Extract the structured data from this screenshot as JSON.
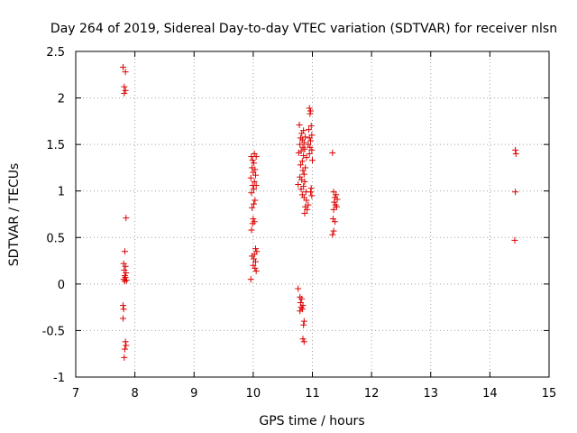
{
  "chart_data": {
    "type": "scatter",
    "title": "Day 264 of 2019, Sidereal Day-to-day VTEC variation (SDTVAR) for receiver nlsn",
    "xlabel": "GPS time / hours",
    "ylabel": "SDTVAR / TECUs",
    "xlim": [
      7,
      15
    ],
    "ylim": [
      -1,
      2.5
    ],
    "xticks": [
      7,
      8,
      9,
      10,
      11,
      12,
      13,
      14,
      15
    ],
    "xtick_labels": [
      "7",
      "8",
      "9",
      "10",
      "11",
      "12",
      "13",
      "14",
      "15"
    ],
    "yticks": [
      -1,
      -0.5,
      0,
      0.5,
      1,
      1.5,
      2,
      2.5
    ],
    "ytick_labels": [
      "-1",
      "-0.5",
      "0",
      "0.5",
      "1",
      "1.5",
      "2",
      "2.5"
    ],
    "grid": true,
    "marker": "+",
    "color": "#dd0000",
    "series": [
      {
        "name": "SDTVAR",
        "points": [
          [
            7.8,
            2.33
          ],
          [
            7.84,
            2.28
          ],
          [
            7.82,
            2.12
          ],
          [
            7.84,
            2.08
          ],
          [
            7.82,
            2.05
          ],
          [
            7.85,
            0.71
          ],
          [
            7.83,
            0.35
          ],
          [
            7.81,
            0.22
          ],
          [
            7.84,
            0.19
          ],
          [
            7.82,
            0.15
          ],
          [
            7.85,
            0.12
          ],
          [
            7.83,
            0.09
          ],
          [
            7.84,
            0.07
          ],
          [
            7.81,
            0.05
          ],
          [
            7.86,
            0.04
          ],
          [
            7.83,
            0.03
          ],
          [
            7.8,
            -0.23
          ],
          [
            7.81,
            -0.27
          ],
          [
            7.8,
            -0.37
          ],
          [
            7.84,
            -0.62
          ],
          [
            7.85,
            -0.66
          ],
          [
            7.83,
            -0.7
          ],
          [
            7.82,
            -0.79
          ],
          [
            9.97,
            1.37
          ],
          [
            10.02,
            1.4
          ],
          [
            10.05,
            1.37
          ],
          [
            9.99,
            1.33
          ],
          [
            10.01,
            1.3
          ],
          [
            9.98,
            1.25
          ],
          [
            10.03,
            1.23
          ],
          [
            10.0,
            1.2
          ],
          [
            10.04,
            1.17
          ],
          [
            9.96,
            1.14
          ],
          [
            10.02,
            1.1
          ],
          [
            9.99,
            1.06
          ],
          [
            10.05,
            1.06
          ],
          [
            10.01,
            1.02
          ],
          [
            9.97,
            0.98
          ],
          [
            10.03,
            0.9
          ],
          [
            10.01,
            0.86
          ],
          [
            9.98,
            0.82
          ],
          [
            10.0,
            0.7
          ],
          [
            10.02,
            0.67
          ],
          [
            9.99,
            0.65
          ],
          [
            9.97,
            0.58
          ],
          [
            10.04,
            0.38
          ],
          [
            10.06,
            0.35
          ],
          [
            10.02,
            0.32
          ],
          [
            9.98,
            0.3
          ],
          [
            10.01,
            0.27
          ],
          [
            10.04,
            0.24
          ],
          [
            10.0,
            0.2
          ],
          [
            10.03,
            0.17
          ],
          [
            10.05,
            0.14
          ],
          [
            9.96,
            0.05
          ],
          [
            10.78,
            1.71
          ],
          [
            10.82,
            1.62
          ],
          [
            10.85,
            1.65
          ],
          [
            10.88,
            1.58
          ],
          [
            10.8,
            1.57
          ],
          [
            10.83,
            1.55
          ],
          [
            10.86,
            1.52
          ],
          [
            10.79,
            1.5
          ],
          [
            10.84,
            1.47
          ],
          [
            10.87,
            1.45
          ],
          [
            10.81,
            1.43
          ],
          [
            10.77,
            1.41
          ],
          [
            10.85,
            1.38
          ],
          [
            10.9,
            1.36
          ],
          [
            10.83,
            1.32
          ],
          [
            10.8,
            1.28
          ],
          [
            10.88,
            1.25
          ],
          [
            10.84,
            1.22
          ],
          [
            10.86,
            1.18
          ],
          [
            10.79,
            1.15
          ],
          [
            10.82,
            1.12
          ],
          [
            10.87,
            1.1
          ],
          [
            10.76,
            1.07
          ],
          [
            10.85,
            1.05
          ],
          [
            10.81,
            1.02
          ],
          [
            10.89,
            0.99
          ],
          [
            10.83,
            0.96
          ],
          [
            10.86,
            0.93
          ],
          [
            10.9,
            0.9
          ],
          [
            10.93,
            0.85
          ],
          [
            10.88,
            0.83
          ],
          [
            10.91,
            0.8
          ],
          [
            10.87,
            0.76
          ],
          [
            10.95,
            1.89
          ],
          [
            10.97,
            1.86
          ],
          [
            10.96,
            1.83
          ],
          [
            10.98,
            1.7
          ],
          [
            10.94,
            1.66
          ],
          [
            10.99,
            1.6
          ],
          [
            10.95,
            1.57
          ],
          [
            10.97,
            1.54
          ],
          [
            10.93,
            1.5
          ],
          [
            10.96,
            1.47
          ],
          [
            10.99,
            1.44
          ],
          [
            10.95,
            1.4
          ],
          [
            11.0,
            1.33
          ],
          [
            10.98,
            1.03
          ],
          [
            10.97,
            0.99
          ],
          [
            10.99,
            0.95
          ],
          [
            10.76,
            -0.05
          ],
          [
            10.79,
            -0.14
          ],
          [
            10.82,
            -0.16
          ],
          [
            10.8,
            -0.2
          ],
          [
            10.84,
            -0.23
          ],
          [
            10.81,
            -0.25
          ],
          [
            10.83,
            -0.27
          ],
          [
            10.79,
            -0.29
          ],
          [
            10.86,
            -0.4
          ],
          [
            10.85,
            -0.44
          ],
          [
            10.84,
            -0.59
          ],
          [
            10.86,
            -0.62
          ],
          [
            11.34,
            1.41
          ],
          [
            11.36,
            0.99
          ],
          [
            11.4,
            0.96
          ],
          [
            11.38,
            0.93
          ],
          [
            11.42,
            0.91
          ],
          [
            11.37,
            0.88
          ],
          [
            11.39,
            0.85
          ],
          [
            11.41,
            0.83
          ],
          [
            11.36,
            0.8
          ],
          [
            11.35,
            0.7
          ],
          [
            11.38,
            0.67
          ],
          [
            11.36,
            0.57
          ],
          [
            11.34,
            0.53
          ],
          [
            14.43,
            1.44
          ],
          [
            14.44,
            1.4
          ],
          [
            14.43,
            0.99
          ],
          [
            14.42,
            0.47
          ]
        ]
      }
    ]
  }
}
